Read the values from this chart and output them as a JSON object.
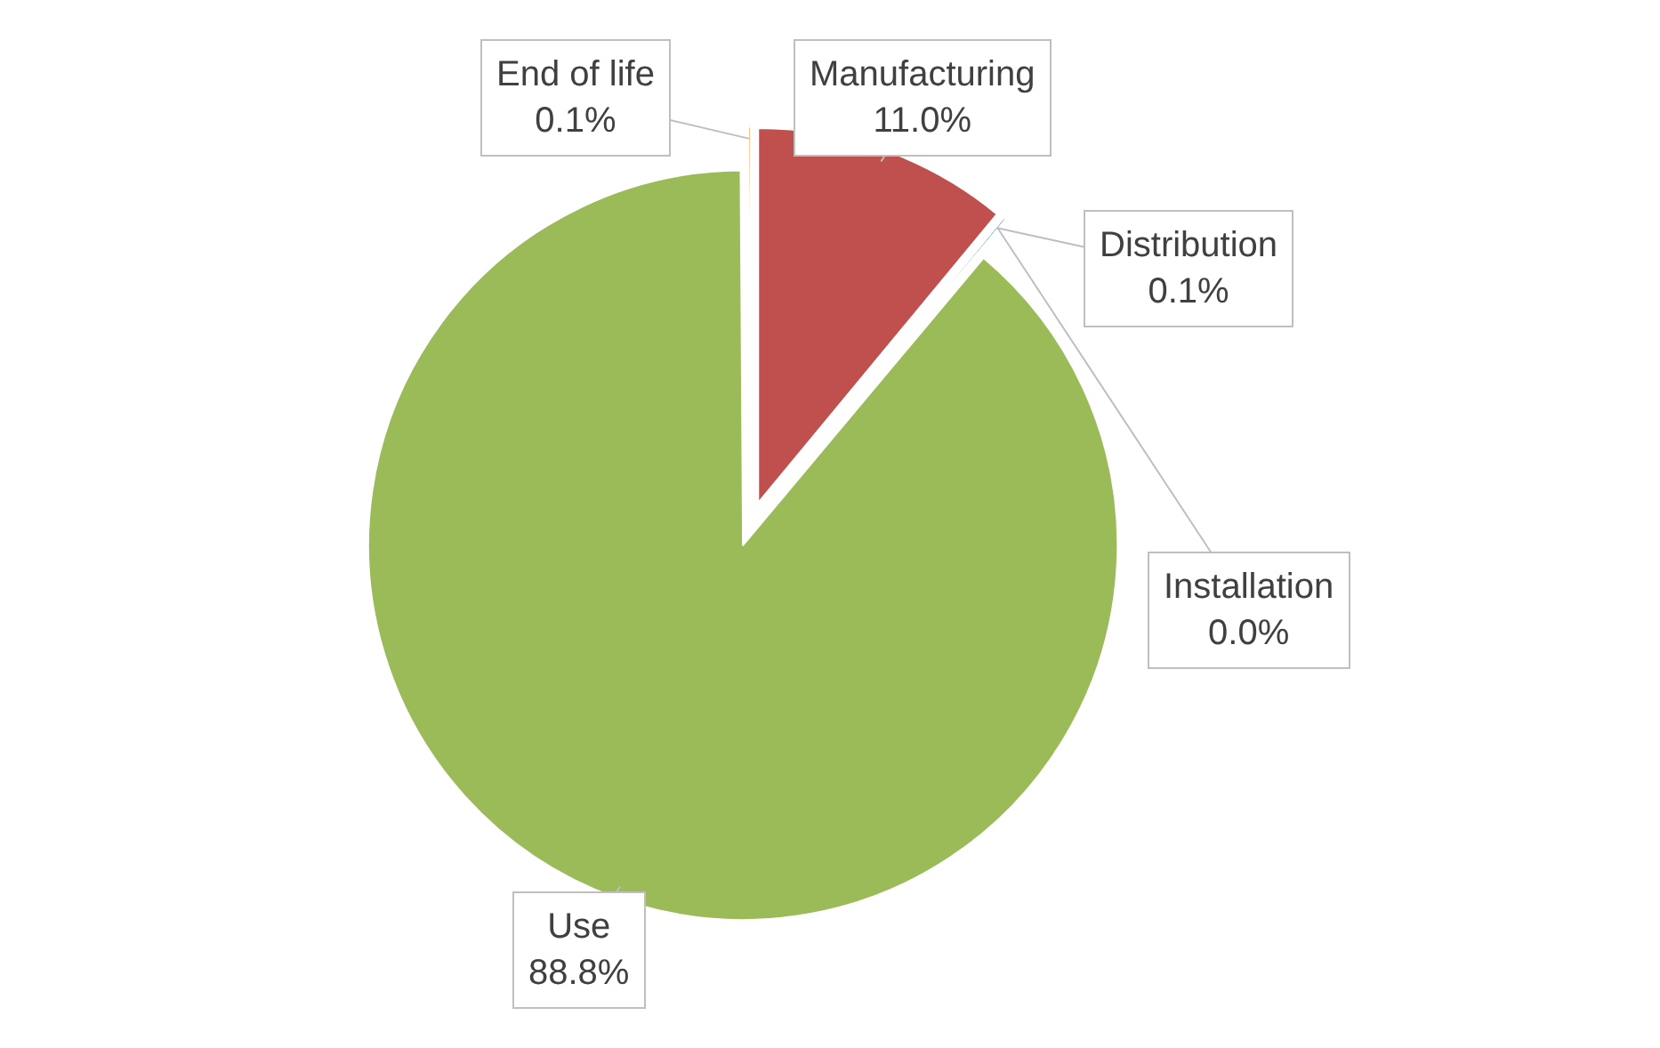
{
  "chart_data": {
    "type": "pie",
    "categories": [
      "Manufacturing",
      "Distribution",
      "Installation",
      "Use",
      "End of life"
    ],
    "values": [
      11.0,
      0.1,
      0.0,
      88.8,
      0.1
    ],
    "value_labels": [
      "11.0%",
      "0.1%",
      "0.0%",
      "88.8%",
      "0.1%"
    ],
    "colors": [
      "#c0504d",
      "#0070c0",
      "#4f81bd",
      "#9bbb59",
      "#f79646"
    ],
    "legend": false
  }
}
